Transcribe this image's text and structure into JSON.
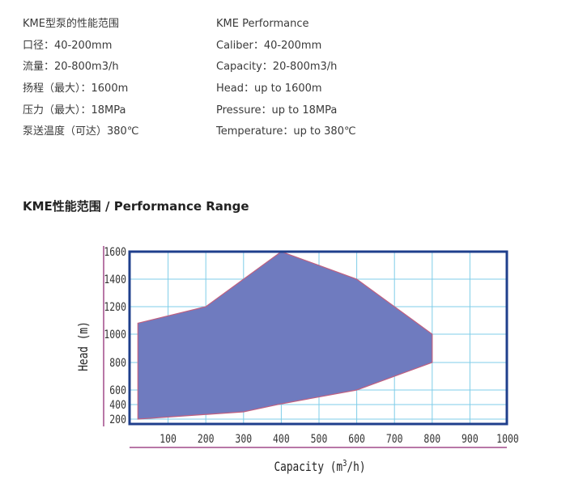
{
  "specs": {
    "left": {
      "title": "KME型泵的性能范围",
      "rows": [
        "口径：40-200mm",
        "流量：20-800m3/h",
        "扬程（最大）：1600m",
        "压力（最大）：18MPa",
        "泵送温度（可达）380℃"
      ]
    },
    "right": {
      "title": "KME Performance",
      "rows": [
        "Caliber：40-200mm",
        "Capacity：20-800m3/h",
        "Head：up to 1600m",
        "Pressure：up to 18MPa",
        "Temperature：up to 380℃"
      ]
    }
  },
  "section_title": "KME性能范围 / Performance Range",
  "colors": {
    "frame": "#1f3f8c",
    "grid": "#7fcde8",
    "region_fill": "#6f7bbf",
    "region_edge": "#c06080",
    "axis_accent": "#a04a8a",
    "text": "#333333"
  },
  "chart_data": {
    "type": "area",
    "title": "",
    "xlabel": "Capacity",
    "xlabel_unit_prefix": "(m",
    "xlabel_unit_sup": "3",
    "xlabel_unit_suffix": "/h)",
    "ylabel": "Head (m)",
    "xlim": [
      0,
      1000
    ],
    "ylim": [
      200,
      1600
    ],
    "x_ticks": [
      100,
      200,
      300,
      400,
      500,
      600,
      700,
      800,
      900,
      1000
    ],
    "y_ticks": [
      200,
      400,
      600,
      800,
      1000,
      1200,
      1400,
      1600
    ],
    "grid": true,
    "series": [
      {
        "region": [
          [
            20,
            1080
          ],
          [
            200,
            1200
          ],
          [
            400,
            1600
          ],
          [
            600,
            1400
          ],
          [
            800,
            1000
          ],
          [
            800,
            800
          ],
          [
            600,
            600
          ],
          [
            400,
            410
          ],
          [
            300,
            300
          ],
          [
            20,
            200
          ]
        ]
      }
    ]
  }
}
